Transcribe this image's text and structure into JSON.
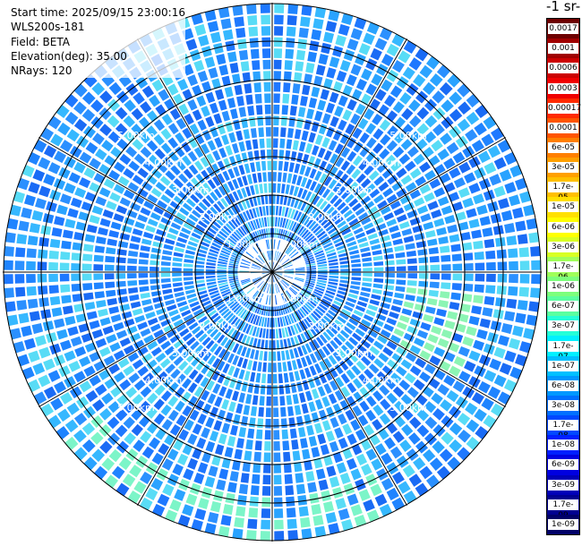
{
  "info": {
    "start_time": "Start time: 2025/09/15 23:00:16",
    "instrument": "WLS200s-181",
    "field": "Field: BETA",
    "elevation": "Elevation(deg): 35.00",
    "nrays": "NRays: 120"
  },
  "chart_data": {
    "type": "heatmap",
    "projection": "polar-ppi",
    "field": "BETA",
    "n_rays": 120,
    "range_rings_km": [
      1,
      2,
      3,
      4,
      5
    ],
    "range_ring_labels": [
      "1.00km",
      "2.00km",
      "3.00km",
      "4.00km",
      "5.00km"
    ],
    "max_range_km": 7.0,
    "colorbar": {
      "title": "-1 sr-",
      "scale": "log",
      "ticks": [
        "0.0017",
        "0.001",
        "0.0006",
        "0.0003",
        "0.00017",
        "0.0001",
        "6e-05",
        "3e-05",
        "1.7e-05",
        "1e-05",
        "6e-06",
        "3e-06",
        "1.7e-06",
        "1e-06",
        "6e-07",
        "3e-07",
        "1.7e-07",
        "1e-07",
        "6e-08",
        "3e-08",
        "1.7e-08",
        "1e-08",
        "6e-09",
        "3e-09",
        "1.7e-09",
        "1e-09"
      ],
      "colors": [
        "#6e0000",
        "#a00000",
        "#cc0000",
        "#f00000",
        "#ff2a00",
        "#ff5500",
        "#ff7f00",
        "#ffa000",
        "#ffc000",
        "#ffe000",
        "#ffff00",
        "#d8ff24",
        "#a0ff5a",
        "#7cff7c",
        "#5affa0",
        "#24ffd8",
        "#00f0ff",
        "#00c0ff",
        "#0098ff",
        "#0070ff",
        "#0048ff",
        "#0020ff",
        "#0000e0",
        "#0000b8",
        "#000090",
        "#000068"
      ]
    }
  }
}
